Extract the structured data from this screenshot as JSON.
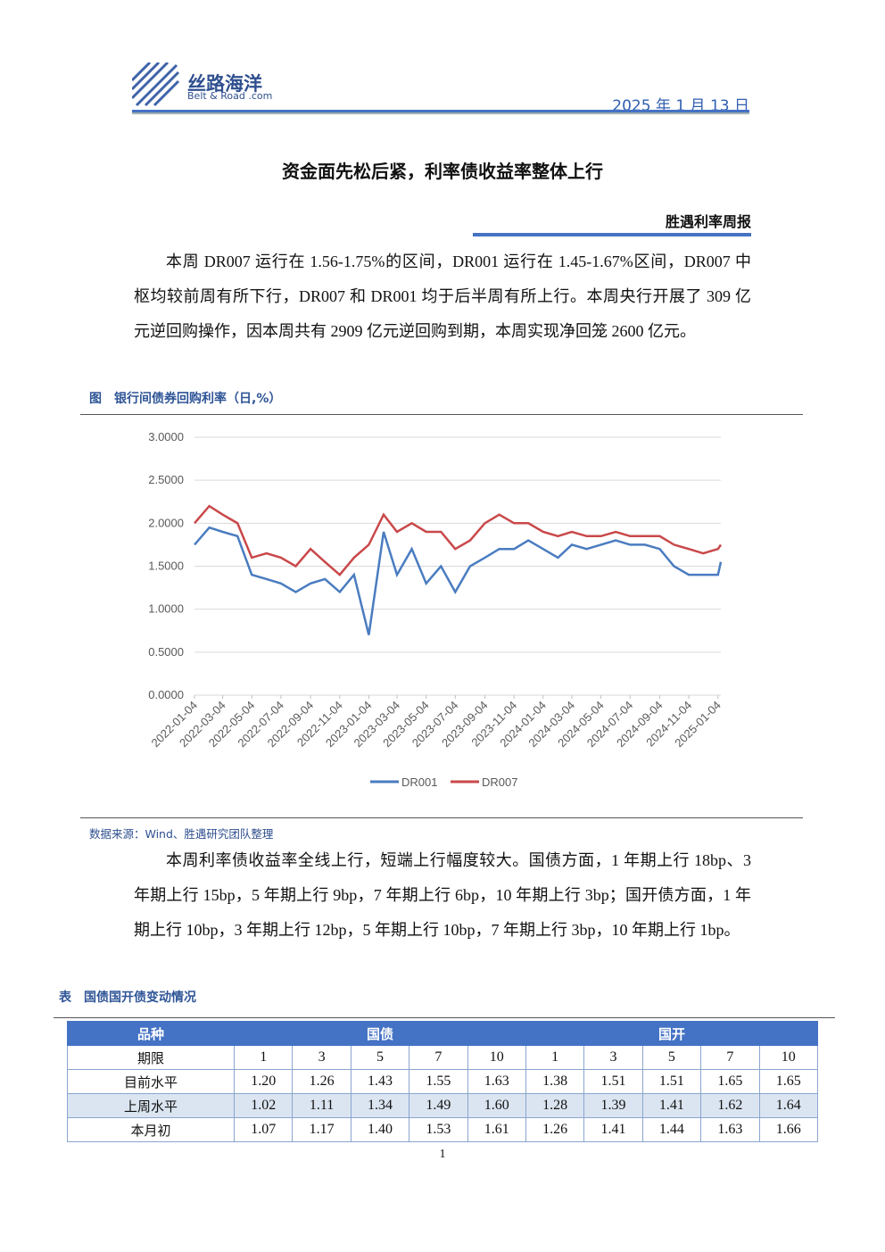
{
  "header": {
    "logo_cn": "丝路海洋",
    "logo_en": "Belt & Road .com",
    "date": "2025 年 1 月 13 日"
  },
  "title": "资金面先松后紧，利率债收益率整体上行",
  "subtitle": "胜遇利率周报",
  "paragraph1": "本周 DR007 运行在 1.56-1.75%的区间，DR001 运行在 1.45-1.67%区间，DR007 中枢均较前周有所下行，DR007 和 DR001 均于后半周有所上行。本周央行开展了 309 亿元逆回购操作，因本周共有 2909 亿元逆回购到期，本周实现净回笼 2600 亿元。",
  "figure_caption": "图　银行间债券回购利率（日,%）",
  "chart_data": {
    "type": "line",
    "x": [
      "2022-01-04",
      "2022-02-04",
      "2022-03-04",
      "2022-04-04",
      "2022-05-04",
      "2022-06-04",
      "2022-07-04",
      "2022-08-04",
      "2022-09-04",
      "2022-10-04",
      "2022-11-04",
      "2022-12-04",
      "2023-01-04",
      "2023-02-04",
      "2023-03-04",
      "2023-04-04",
      "2023-05-04",
      "2023-06-04",
      "2023-07-04",
      "2023-08-04",
      "2023-09-04",
      "2023-10-04",
      "2023-11-04",
      "2023-12-04",
      "2024-01-04",
      "2024-02-04",
      "2024-03-04",
      "2024-04-04",
      "2024-05-04",
      "2024-06-04",
      "2024-07-04",
      "2024-08-04",
      "2024-09-04",
      "2024-10-04",
      "2024-11-04",
      "2024-12-04",
      "2025-01-04",
      "2025-01-10"
    ],
    "xlim": [
      "2022-01-04",
      "2025-01-10"
    ],
    "xticks": [
      "2022-01-04",
      "2022-03-04",
      "2022-05-04",
      "2022-07-04",
      "2022-09-04",
      "2022-11-04",
      "2023-01-04",
      "2023-03-04",
      "2023-05-04",
      "2023-07-04",
      "2023-09-04",
      "2023-11-04",
      "2024-01-04",
      "2024-03-04",
      "2024-05-04",
      "2024-07-04",
      "2024-09-04",
      "2024-11-04",
      "2025-01-04"
    ],
    "ylim": [
      0,
      3
    ],
    "yticks": [
      {
        "value": 0,
        "label": "0.0000"
      },
      {
        "value": 0.5,
        "label": "0.5000"
      },
      {
        "value": 1,
        "label": "1.0000"
      },
      {
        "value": 1.5,
        "label": "1.5000"
      },
      {
        "value": 2,
        "label": "2.0000"
      },
      {
        "value": 2.5,
        "label": "2.5000"
      },
      {
        "value": 3,
        "label": "3.0000"
      }
    ],
    "grid": true,
    "series": [
      {
        "name": "DR001",
        "color": "#4a7cc0",
        "values": [
          1.75,
          1.95,
          1.9,
          1.85,
          1.4,
          1.35,
          1.3,
          1.2,
          1.3,
          1.35,
          1.2,
          1.4,
          0.7,
          1.9,
          1.4,
          1.7,
          1.3,
          1.5,
          1.2,
          1.5,
          1.6,
          1.7,
          1.7,
          1.8,
          1.7,
          1.6,
          1.75,
          1.7,
          1.75,
          1.8,
          1.75,
          1.75,
          1.7,
          1.5,
          1.4,
          1.4,
          1.4,
          1.55
        ]
      },
      {
        "name": "DR007",
        "color": "#c9484a",
        "values": [
          2.0,
          2.2,
          2.1,
          2.0,
          1.6,
          1.65,
          1.6,
          1.5,
          1.7,
          1.55,
          1.4,
          1.6,
          1.75,
          2.1,
          1.9,
          2.0,
          1.9,
          1.9,
          1.7,
          1.8,
          2.0,
          2.1,
          2.0,
          2.0,
          1.9,
          1.85,
          1.9,
          1.85,
          1.85,
          1.9,
          1.85,
          1.85,
          1.85,
          1.75,
          1.7,
          1.65,
          1.7,
          1.75
        ]
      }
    ]
  },
  "source": "数据来源：Wind、胜遇研究团队整理",
  "paragraph2": "本周利率债收益率全线上行，短端上行幅度较大。国债方面，1 年期上行 18bp、3 年期上行 15bp，5 年期上行 9bp，7 年期上行 6bp，10 年期上行 3bp；国开债方面，1 年期上行 10bp，3 年期上行 12bp，5 年期上行 10bp，7 年期上行 3bp，10 年期上行 1bp。",
  "table_caption": "表　国债国开债变动情况",
  "table": {
    "header": [
      "品种",
      "国债",
      "国开"
    ],
    "rows": [
      [
        "期限",
        "1",
        "3",
        "5",
        "7",
        "10",
        "1",
        "3",
        "5",
        "7",
        "10"
      ],
      [
        "目前水平",
        "1.20",
        "1.26",
        "1.43",
        "1.55",
        "1.63",
        "1.38",
        "1.51",
        "1.51",
        "1.65",
        "1.65"
      ],
      [
        "上周水平",
        "1.02",
        "1.11",
        "1.34",
        "1.49",
        "1.60",
        "1.28",
        "1.39",
        "1.41",
        "1.62",
        "1.64"
      ],
      [
        "本月初",
        "1.07",
        "1.17",
        "1.40",
        "1.53",
        "1.61",
        "1.26",
        "1.41",
        "1.44",
        "1.63",
        "1.66"
      ]
    ]
  },
  "page_number": "1"
}
